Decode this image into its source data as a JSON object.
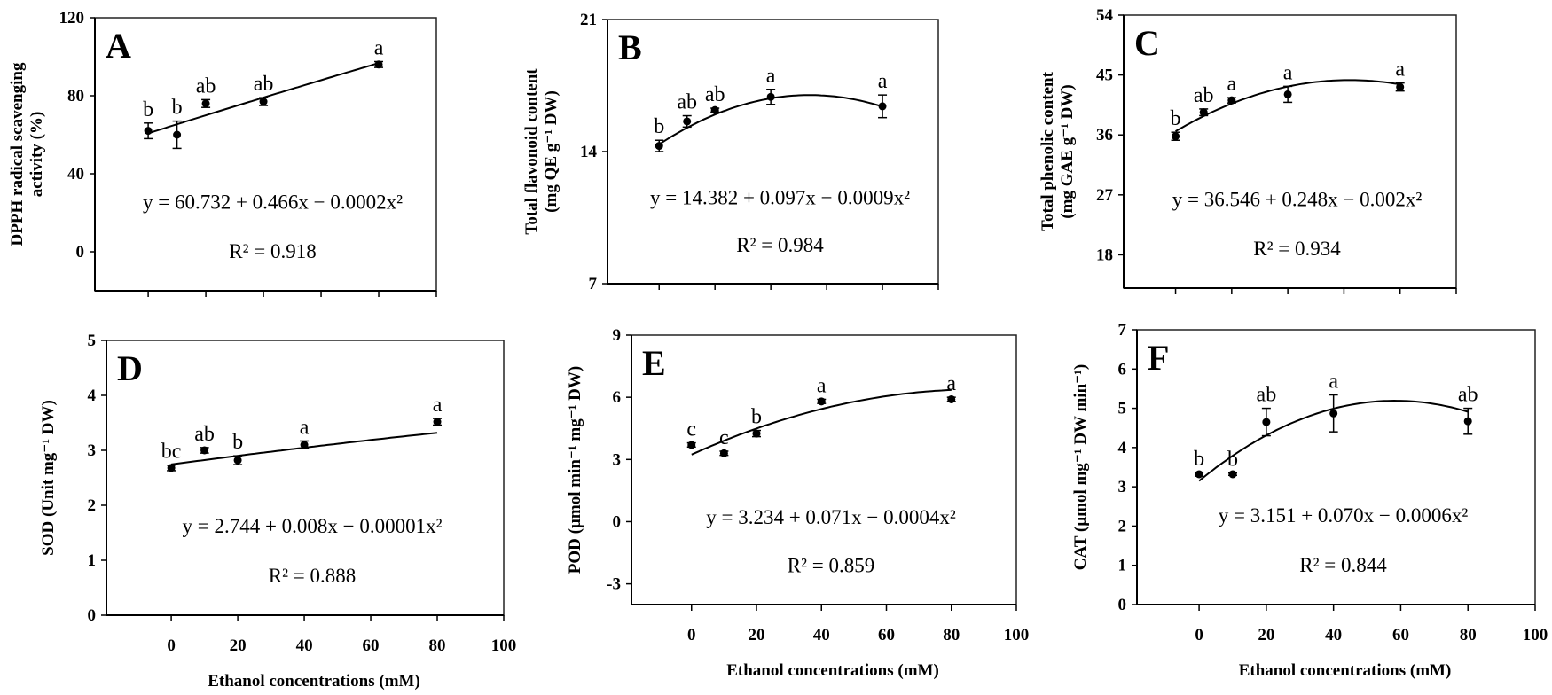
{
  "chart_data": [
    {
      "type": "scatter",
      "panel": "A",
      "ylabel": [
        "DPPH radical scavenging",
        "activity (%)"
      ],
      "xlabel": "",
      "x": [
        0,
        10,
        20,
        40,
        80
      ],
      "values": [
        62,
        60,
        76,
        77,
        96
      ],
      "errors": [
        4,
        7,
        2,
        2,
        1.5
      ],
      "letters": [
        "b",
        "b",
        "ab",
        "ab",
        "a"
      ],
      "yticks": [
        0,
        40,
        80,
        120
      ],
      "ylim": [
        -20,
        120
      ],
      "xlim": [
        -18.5,
        100
      ],
      "xticks": [
        0,
        20,
        40,
        60,
        80,
        100
      ],
      "show_xtick_labels": false,
      "fit": [
        60.732,
        0.466,
        -0.0002
      ],
      "equation": "y = 60.732 + 0.466x − 0.0002x²",
      "r2": "R² = 0.918"
    },
    {
      "type": "scatter",
      "panel": "B",
      "ylabel": [
        "Total flavonoid content",
        "(mg QE g⁻¹ DW)"
      ],
      "xlabel": "",
      "x": [
        0,
        10,
        20,
        40,
        80
      ],
      "values": [
        14.3,
        15.6,
        16.2,
        16.9,
        16.4
      ],
      "errors": [
        0.3,
        0.3,
        0.1,
        0.4,
        0.6
      ],
      "letters": [
        "b",
        "ab",
        "ab",
        "a",
        "a"
      ],
      "yticks": [
        7,
        14,
        21
      ],
      "ylim": [
        7,
        21
      ],
      "xlim": [
        -18.5,
        100
      ],
      "xticks": [
        0,
        20,
        40,
        60,
        80,
        100
      ],
      "show_xtick_labels": false,
      "fit": [
        14.382,
        0.097,
        -0.0009
      ],
      "equation": "y = 14.382 + 0.097x − 0.0009x²",
      "r2": "R² = 0.984"
    },
    {
      "type": "scatter",
      "panel": "C",
      "ylabel": [
        "Total phenolic content",
        "(mg GAE g⁻¹ DW)"
      ],
      "xlabel": "",
      "x": [
        0,
        10,
        20,
        40,
        80
      ],
      "values": [
        35.8,
        39.4,
        41.2,
        42.1,
        43.2
      ],
      "errors": [
        0.6,
        0.5,
        0.4,
        1.2,
        0.6
      ],
      "letters": [
        "b",
        "ab",
        "a",
        "a",
        "a"
      ],
      "yticks": [
        18,
        27,
        36,
        45,
        54
      ],
      "ylim": [
        13,
        54
      ],
      "xlim": [
        -18.5,
        100
      ],
      "xticks": [
        0,
        20,
        40,
        60,
        80,
        100
      ],
      "show_xtick_labels": false,
      "fit": [
        36.546,
        0.248,
        -0.002
      ],
      "equation": "y = 36.546 + 0.248x − 0.002x²",
      "r2": "R² = 0.934"
    },
    {
      "type": "scatter",
      "panel": "D",
      "ylabel": [
        "SOD (Unit mg⁻¹ DW)"
      ],
      "xlabel": "Ethanol concentrations (mM)",
      "x": [
        0,
        10,
        20,
        40,
        80
      ],
      "values": [
        2.68,
        3.0,
        2.82,
        3.1,
        3.52
      ],
      "errors": [
        0.05,
        0.05,
        0.08,
        0.07,
        0.06
      ],
      "letters": [
        "bc",
        "ab",
        "b",
        "a",
        "a"
      ],
      "yticks": [
        0,
        1,
        2,
        3,
        4,
        5
      ],
      "ylim": [
        0,
        5
      ],
      "xlim": [
        -19.5,
        100
      ],
      "xticks": [
        0,
        20,
        40,
        60,
        80,
        100
      ],
      "show_xtick_labels": true,
      "fit": [
        2.744,
        0.008,
        -1e-05
      ],
      "equation": "y = 2.744 + 0.008x − 0.00001x²",
      "r2": "R² = 0.888"
    },
    {
      "type": "scatter",
      "panel": "E",
      "ylabel": [
        "POD (µmol min⁻¹ mg⁻¹ DW)"
      ],
      "xlabel": "Ethanol concentrations (mM)",
      "x": [
        0,
        10,
        20,
        40,
        80
      ],
      "values": [
        3.7,
        3.3,
        4.25,
        5.8,
        5.9
      ],
      "errors": [
        0.1,
        0.1,
        0.15,
        0.1,
        0.1
      ],
      "letters": [
        "c",
        "c",
        "b",
        "a",
        "a"
      ],
      "yticks": [
        -3,
        0,
        3,
        6,
        9
      ],
      "ylim": [
        -4,
        9
      ],
      "xlim": [
        -18.5,
        100
      ],
      "xticks": [
        0,
        20,
        40,
        60,
        80,
        100
      ],
      "show_xtick_labels": true,
      "fit": [
        3.234,
        0.071,
        -0.0004
      ],
      "equation": "y = 3.234 + 0.071x − 0.0004x²",
      "r2": "R² = 0.859"
    },
    {
      "type": "scatter",
      "panel": "F",
      "ylabel": [
        "CAT (µmol mg⁻¹ DW min⁻¹)"
      ],
      "xlabel": "Ethanol concentrations (mM)",
      "x": [
        0,
        10,
        20,
        40,
        80
      ],
      "values": [
        3.32,
        3.32,
        4.65,
        4.87,
        4.67
      ],
      "errors": [
        0.05,
        0.03,
        0.35,
        0.47,
        0.33
      ],
      "letters": [
        "b",
        "b",
        "ab",
        "a",
        "ab"
      ],
      "yticks": [
        0,
        1,
        2,
        3,
        4,
        5,
        6,
        7
      ],
      "ylim": [
        0,
        7
      ],
      "xlim": [
        -18.5,
        100
      ],
      "xticks": [
        0,
        20,
        40,
        60,
        80,
        100
      ],
      "show_xtick_labels": true,
      "fit": [
        3.151,
        0.07,
        -0.0006
      ],
      "equation": "y = 3.151 + 0.070x − 0.0006x²",
      "r2": "R² = 0.844"
    }
  ]
}
